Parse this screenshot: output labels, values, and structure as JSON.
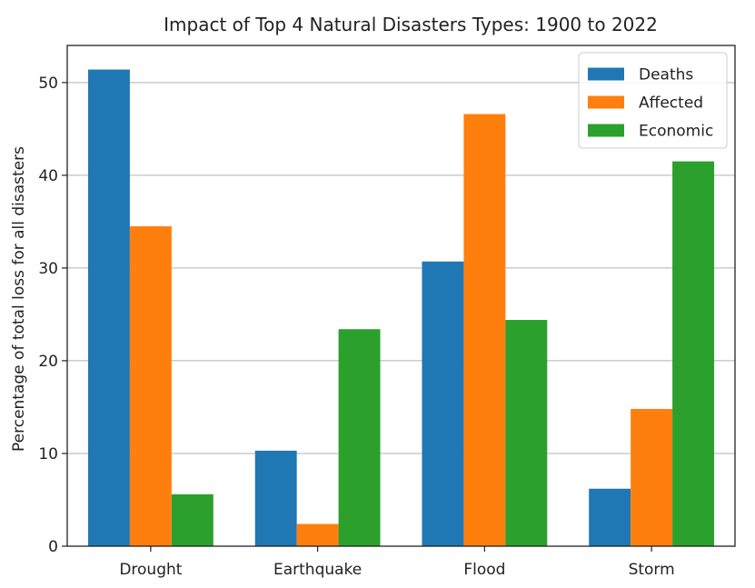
{
  "chart_data": {
    "type": "bar",
    "title": "Impact of Top 4 Natural Disasters Types: 1900 to 2022",
    "xlabel": "",
    "ylabel": "Percentage of total loss for all disasters",
    "categories": [
      "Drought",
      "Earthquake",
      "Flood",
      "Storm"
    ],
    "series": [
      {
        "name": "Deaths",
        "color": "#1f77b4",
        "values": [
          51.4,
          10.3,
          30.7,
          6.2
        ]
      },
      {
        "name": "Affected",
        "color": "#ff7f0e",
        "values": [
          34.5,
          2.4,
          46.6,
          14.8
        ]
      },
      {
        "name": "Economic",
        "color": "#2ca02c",
        "values": [
          5.6,
          23.4,
          24.4,
          41.5
        ]
      }
    ],
    "ylim": [
      0,
      54
    ],
    "yticks": [
      0,
      10,
      20,
      30,
      40,
      50
    ],
    "grid": "y",
    "legend": "top-right"
  }
}
